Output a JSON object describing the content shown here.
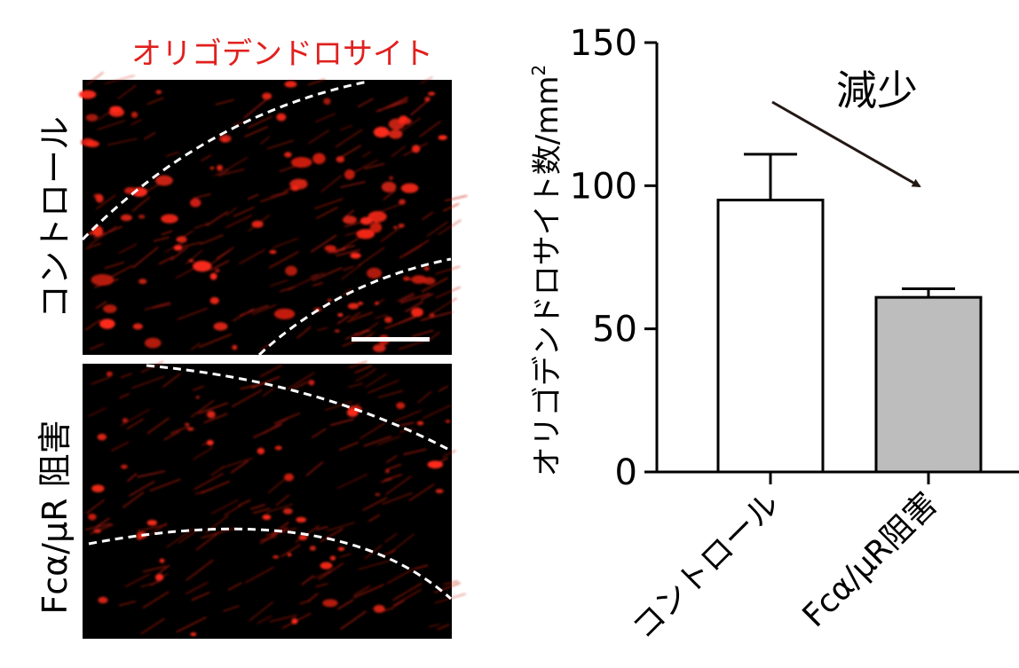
{
  "micrograph": {
    "stain_label": "オリゴデンドロサイト",
    "stain_color": "#e0201e",
    "rows": [
      {
        "label": "コントロール"
      },
      {
        "label": "Fcα/μR 阻害"
      }
    ]
  },
  "chart_data": {
    "type": "bar",
    "categories": [
      "コントロール",
      "Fcα/μR阻害"
    ],
    "values": [
      95,
      61
    ],
    "errors": [
      16,
      3
    ],
    "bar_fills": [
      "#ffffff",
      "#bdbdbd"
    ],
    "ylabel": "オリゴデンドロサイト数/mm",
    "ylabel_sup": "2",
    "ylim": [
      0,
      150
    ],
    "yticks": [
      0,
      50,
      100,
      150
    ],
    "annotation": "減少",
    "grid": false
  }
}
